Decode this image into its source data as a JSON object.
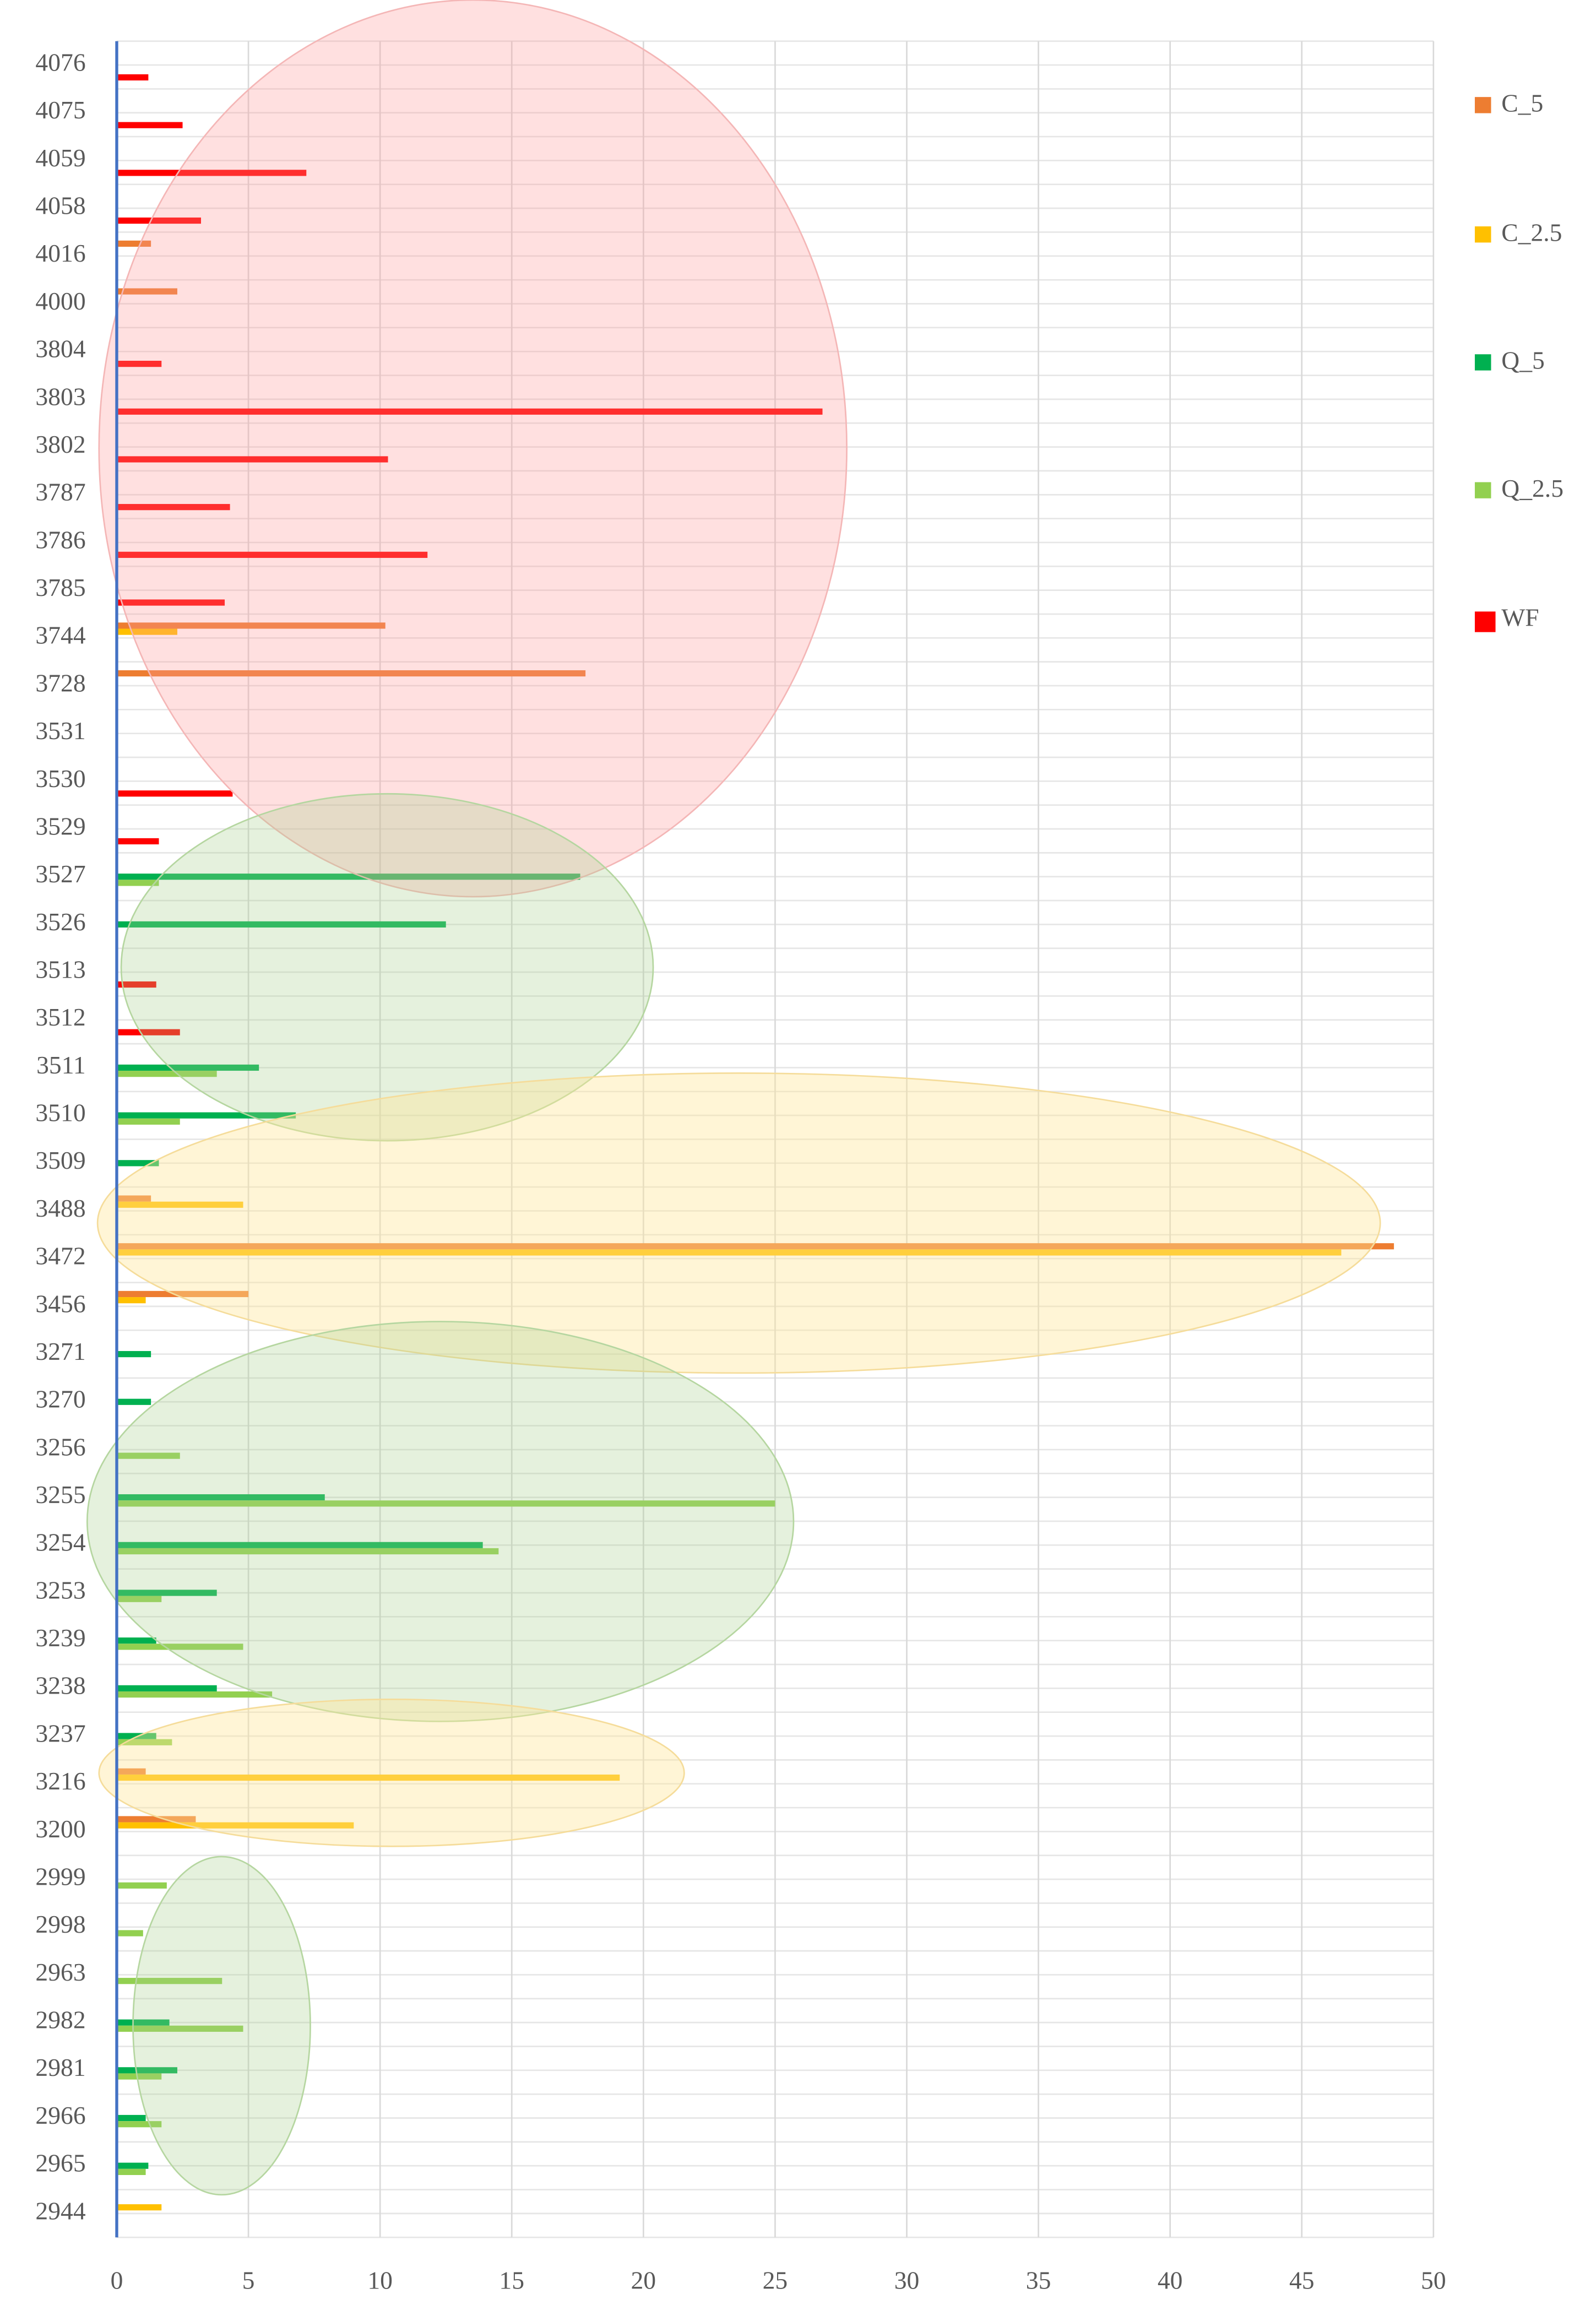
{
  "chart_data": {
    "type": "barh",
    "categories": [
      "4076",
      "4075",
      "4059",
      "4058",
      "4016",
      "4000",
      "3804",
      "3803",
      "3802",
      "3787",
      "3786",
      "3785",
      "3744",
      "3728",
      "3531",
      "3530",
      "3529",
      "3527",
      "3526",
      "3513",
      "3512",
      "3511",
      "3510",
      "3509",
      "3488",
      "3472",
      "3456",
      "3271",
      "3270",
      "3256",
      "3255",
      "3254",
      "3253",
      "3239",
      "3238",
      "3237",
      "3216",
      "3200",
      "2999",
      "2998",
      "2963",
      "2982",
      "2981",
      "2966",
      "2965",
      "2944"
    ],
    "series": [
      {
        "name": "C_5",
        "color": "#ed7d31",
        "values": [
          null,
          null,
          null,
          null,
          1.3,
          2.3,
          null,
          null,
          null,
          null,
          null,
          null,
          10.2,
          17.8,
          null,
          null,
          null,
          null,
          null,
          null,
          null,
          null,
          null,
          null,
          1.3,
          48.5,
          5.0,
          null,
          null,
          null,
          null,
          null,
          null,
          null,
          null,
          null,
          1.1,
          3.0,
          null,
          null,
          null,
          null,
          null,
          null,
          null,
          null
        ]
      },
      {
        "name": "C_2.5",
        "color": "#ffc000",
        "values": [
          null,
          null,
          null,
          null,
          null,
          null,
          null,
          null,
          null,
          null,
          null,
          null,
          2.3,
          null,
          null,
          null,
          null,
          null,
          null,
          null,
          null,
          null,
          null,
          null,
          4.8,
          46.5,
          1.1,
          null,
          null,
          null,
          null,
          null,
          null,
          null,
          null,
          null,
          19.1,
          9.0,
          null,
          null,
          null,
          null,
          null,
          null,
          null,
          1.7
        ]
      },
      {
        "name": "Q_5",
        "color": "#00b050",
        "values": [
          null,
          null,
          null,
          null,
          null,
          null,
          null,
          null,
          null,
          null,
          null,
          null,
          null,
          null,
          null,
          null,
          null,
          17.6,
          12.5,
          null,
          null,
          5.4,
          6.8,
          1.6,
          null,
          null,
          null,
          1.3,
          1.3,
          null,
          7.9,
          13.9,
          3.8,
          1.5,
          3.8,
          1.5,
          null,
          null,
          null,
          null,
          null,
          2.0,
          2.3,
          1.1,
          1.2,
          null
        ]
      },
      {
        "name": "Q_2.5",
        "color": "#92d050",
        "values": [
          null,
          null,
          null,
          null,
          null,
          null,
          null,
          null,
          null,
          null,
          null,
          null,
          null,
          null,
          null,
          null,
          null,
          1.6,
          null,
          null,
          null,
          3.8,
          2.4,
          null,
          null,
          null,
          null,
          null,
          null,
          2.4,
          25.0,
          14.5,
          1.7,
          4.8,
          5.9,
          2.1,
          null,
          null,
          1.9,
          1.0,
          4.0,
          4.8,
          1.7,
          1.7,
          1.1,
          null
        ]
      },
      {
        "name": "WF",
        "color": "#ff0000",
        "values": [
          1.2,
          2.5,
          7.2,
          3.2,
          null,
          null,
          1.7,
          26.8,
          10.3,
          4.3,
          11.8,
          4.1,
          null,
          null,
          null,
          4.4,
          1.6,
          null,
          null,
          1.5,
          2.4,
          null,
          null,
          null,
          null,
          null,
          null,
          null,
          null,
          null,
          null,
          null,
          null,
          null,
          null,
          null,
          null,
          null,
          null,
          null,
          null,
          null,
          null,
          null,
          null,
          null
        ]
      }
    ],
    "xlim": [
      0,
      50
    ],
    "xticks": [
      0,
      5,
      10,
      15,
      20,
      25,
      30,
      35,
      40,
      45,
      50
    ],
    "grid": true,
    "legend": "right"
  }
}
